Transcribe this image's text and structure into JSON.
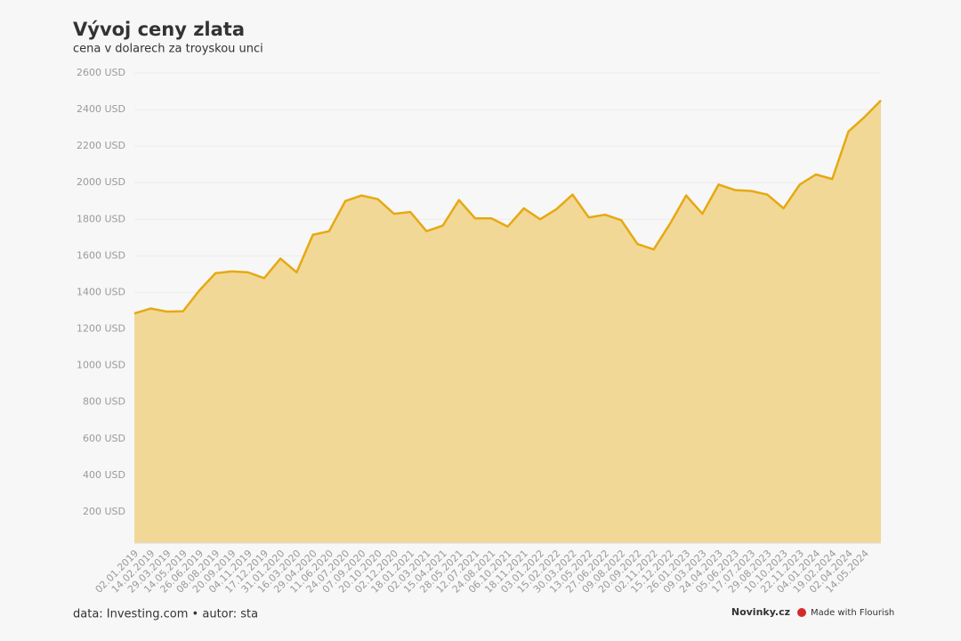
{
  "chart_data": {
    "type": "area",
    "title": "Vývoj ceny zlata",
    "subtitle": "cena v dolarech za troyskou unci",
    "footer": "data: Investing.com • autor: sta",
    "brand": "Novinky.cz",
    "credit": "Made with Flourish",
    "color": "#e6a912",
    "fill": "#f2d897",
    "grid": true,
    "categories": [
      "02.01.2019",
      "14.02.2019",
      "29.03.2019",
      "14.05.2019",
      "26.06.2019",
      "08.08.2019",
      "20.09.2019",
      "04.11.2019",
      "17.12.2019",
      "31.01.2020",
      "16.03.2020",
      "29.04.2020",
      "11.06.2020",
      "24.07.2020",
      "07.09.2020",
      "20.10.2020",
      "02.12.2020",
      "18.01.2021",
      "02.03.2021",
      "15.04.2021",
      "28.05.2021",
      "12.07.2021",
      "24.08.2021",
      "06.10.2021",
      "18.11.2021",
      "03.01.2022",
      "15.02.2022",
      "30.03.2022",
      "13.05.2022",
      "27.06.2022",
      "09.08.2022",
      "20.09.2022",
      "02.11.2022",
      "15.12.2022",
      "26.01.2023",
      "09.03.2023",
      "24.04.2023",
      "05.06.2023",
      "17.07.2023",
      "29.08.2023",
      "10.10.2023",
      "22.11.2023",
      "04.01.2024",
      "19.02.2024",
      "02.04.2024",
      "14.05.2024",
      null
    ],
    "values": [
      1285,
      1312,
      1295,
      1297,
      1410,
      1505,
      1515,
      1510,
      1478,
      1585,
      1510,
      1715,
      1735,
      1900,
      1930,
      1910,
      1830,
      1840,
      1735,
      1765,
      1905,
      1805,
      1805,
      1760,
      1860,
      1800,
      1855,
      1935,
      1810,
      1825,
      1795,
      1665,
      1635,
      1775,
      1930,
      1830,
      1990,
      1960,
      1955,
      1935,
      1860,
      1990,
      2045,
      2020,
      2280,
      2360,
      2450
    ],
    "ylim": [
      0,
      2600
    ],
    "yticks": [
      {
        "value": 200,
        "label": "200 USD"
      },
      {
        "value": 400,
        "label": "400 USD"
      },
      {
        "value": 600,
        "label": "600 USD"
      },
      {
        "value": 800,
        "label": "800 USD"
      },
      {
        "value": 1000,
        "label": "1000 USD"
      },
      {
        "value": 1200,
        "label": "1200 USD"
      },
      {
        "value": 1400,
        "label": "1400 USD"
      },
      {
        "value": 1600,
        "label": "1600 USD"
      },
      {
        "value": 1800,
        "label": "1800 USD"
      },
      {
        "value": 2000,
        "label": "2000 USD"
      },
      {
        "value": 2200,
        "label": "2200 USD"
      },
      {
        "value": 2400,
        "label": "2400 USD"
      },
      {
        "value": 2600,
        "label": "2600 USD"
      }
    ]
  }
}
